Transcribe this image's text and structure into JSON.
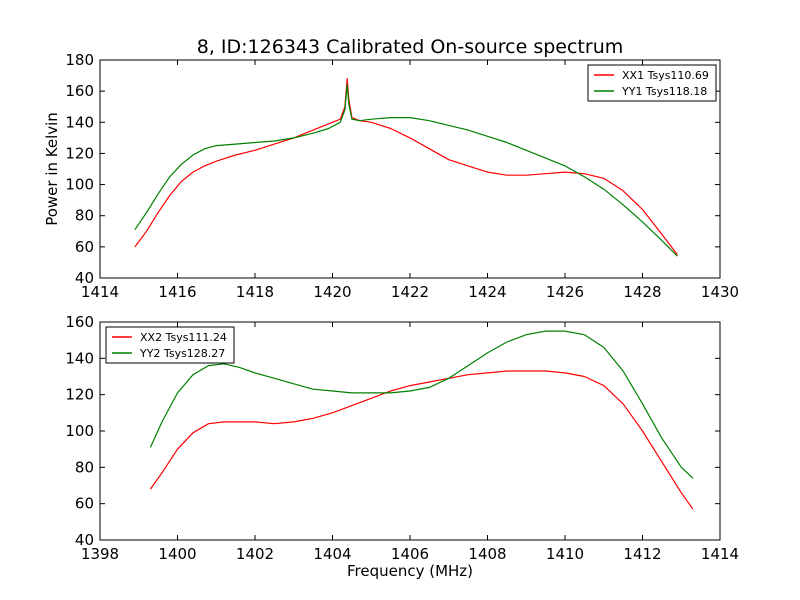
{
  "chart_data": [
    {
      "type": "line",
      "title": "8, ID:126343 Calibrated On-source spectrum",
      "xlabel": "",
      "ylabel": "Power in Kelvin",
      "xlim": [
        1414,
        1430
      ],
      "ylim": [
        40,
        180
      ],
      "xticks": [
        1414,
        1416,
        1418,
        1420,
        1422,
        1424,
        1426,
        1428,
        1430
      ],
      "yticks": [
        40,
        60,
        80,
        100,
        120,
        140,
        160,
        180
      ],
      "legend_position": "top-right",
      "series": [
        {
          "name": "XX1 Tsys110.69",
          "color": "#ff0000",
          "x": [
            1414.9,
            1415.2,
            1415.5,
            1415.8,
            1416.1,
            1416.4,
            1416.7,
            1417.0,
            1417.5,
            1418.0,
            1418.5,
            1419.0,
            1419.5,
            1419.9,
            1420.2,
            1420.32,
            1420.38,
            1420.42,
            1420.5,
            1420.7,
            1421.0,
            1421.5,
            1422.0,
            1422.5,
            1423.0,
            1423.5,
            1424.0,
            1424.5,
            1425.0,
            1425.5,
            1426.0,
            1426.5,
            1427.0,
            1427.5,
            1428.0,
            1428.5,
            1428.9
          ],
          "y": [
            60,
            70,
            82,
            93,
            102,
            108,
            112,
            115,
            119,
            122,
            126,
            130,
            135,
            139,
            142,
            150,
            168,
            155,
            143,
            141,
            140,
            136,
            130,
            123,
            116,
            112,
            108,
            106,
            106,
            107,
            108,
            107,
            104,
            96,
            84,
            68,
            55
          ]
        },
        {
          "name": "YY1 Tsys118.18",
          "color": "#008000",
          "x": [
            1414.9,
            1415.2,
            1415.5,
            1415.8,
            1416.1,
            1416.4,
            1416.7,
            1417.0,
            1417.5,
            1418.0,
            1418.5,
            1419.0,
            1419.5,
            1419.9,
            1420.2,
            1420.32,
            1420.38,
            1420.42,
            1420.5,
            1420.7,
            1421.0,
            1421.5,
            1422.0,
            1422.5,
            1423.0,
            1423.5,
            1424.0,
            1424.5,
            1425.0,
            1425.5,
            1426.0,
            1426.5,
            1427.0,
            1427.5,
            1428.0,
            1428.5,
            1428.9
          ],
          "y": [
            71,
            82,
            94,
            105,
            113,
            119,
            123,
            125,
            126,
            127,
            128,
            130,
            133,
            136,
            140,
            148,
            164,
            152,
            142,
            141,
            142,
            143,
            143,
            141,
            138,
            135,
            131,
            127,
            122,
            117,
            112,
            105,
            97,
            87,
            76,
            64,
            54
          ]
        }
      ]
    },
    {
      "type": "line",
      "title": "",
      "xlabel": "Frequency (MHz)",
      "ylabel": "",
      "xlim": [
        1398,
        1414
      ],
      "ylim": [
        40,
        160
      ],
      "xticks": [
        1398,
        1400,
        1402,
        1404,
        1406,
        1408,
        1410,
        1412,
        1414
      ],
      "yticks": [
        40,
        60,
        80,
        100,
        120,
        140,
        160
      ],
      "legend_position": "top-left",
      "series": [
        {
          "name": "XX2 Tsys111.24",
          "color": "#ff0000",
          "x": [
            1399.3,
            1399.6,
            1400.0,
            1400.4,
            1400.8,
            1401.2,
            1401.6,
            1402.0,
            1402.5,
            1403.0,
            1403.5,
            1404.0,
            1404.5,
            1405.0,
            1405.5,
            1406.0,
            1406.5,
            1407.0,
            1407.5,
            1408.0,
            1408.5,
            1409.0,
            1409.5,
            1410.0,
            1410.5,
            1411.0,
            1411.5,
            1412.0,
            1412.5,
            1413.0,
            1413.3
          ],
          "y": [
            68,
            77,
            90,
            99,
            104,
            105,
            105,
            105,
            104,
            105,
            107,
            110,
            114,
            118,
            122,
            125,
            127,
            129,
            131,
            132,
            133,
            133,
            133,
            132,
            130,
            125,
            115,
            100,
            83,
            66,
            57
          ]
        },
        {
          "name": "YY2 Tsys128.27",
          "color": "#008000",
          "x": [
            1399.3,
            1399.6,
            1400.0,
            1400.4,
            1400.8,
            1401.2,
            1401.6,
            1402.0,
            1402.5,
            1403.0,
            1403.5,
            1404.0,
            1404.5,
            1405.0,
            1405.5,
            1406.0,
            1406.5,
            1407.0,
            1407.5,
            1408.0,
            1408.5,
            1409.0,
            1409.5,
            1410.0,
            1410.5,
            1411.0,
            1411.5,
            1412.0,
            1412.5,
            1413.0,
            1413.3
          ],
          "y": [
            91,
            105,
            121,
            131,
            136,
            137,
            135,
            132,
            129,
            126,
            123,
            122,
            121,
            121,
            121,
            122,
            124,
            129,
            136,
            143,
            149,
            153,
            155,
            155,
            153,
            146,
            133,
            115,
            96,
            80,
            74
          ]
        }
      ]
    }
  ]
}
